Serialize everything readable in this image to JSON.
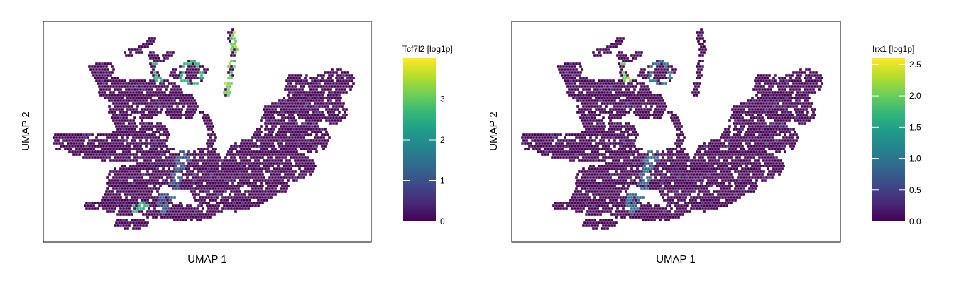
{
  "palette": [
    "#440154",
    "#482878",
    "#3e4989",
    "#31688e",
    "#26828e",
    "#1f9e89",
    "#35b779",
    "#6ece58",
    "#b5de2b",
    "#fde725"
  ],
  "chart_data": [
    {
      "type": "scatter",
      "subtype": "hexbin-embedding",
      "xlabel": "UMAP 1",
      "ylabel": "UMAP 2",
      "legend": {
        "title": "Tcf7l2 [log1p]",
        "position": "right",
        "ticks": [
          0,
          1,
          2,
          3
        ],
        "range": [
          0,
          4.0
        ]
      },
      "highlights": [
        {
          "region": "upper-right-arm",
          "value": 3.6
        },
        {
          "region": "upper-ring",
          "value": 2.8
        },
        {
          "region": "upper-left-tip",
          "value": 3.0
        },
        {
          "region": "center-lower",
          "value": 1.2
        },
        {
          "region": "small-lower-patch",
          "value": 2.8
        }
      ]
    },
    {
      "type": "scatter",
      "subtype": "hexbin-embedding",
      "xlabel": "UMAP 1",
      "ylabel": "UMAP 2",
      "legend": {
        "title": "Irx1 [log1p]",
        "position": "right",
        "ticks": [
          0.0,
          0.5,
          1.0,
          1.5,
          2.0,
          2.5
        ],
        "range": [
          0,
          2.6
        ]
      },
      "highlights": [
        {
          "region": "upper-left-tip",
          "value": 2.3
        },
        {
          "region": "upper-ring",
          "value": 1.1
        },
        {
          "region": "center-lower",
          "value": 0.9
        }
      ]
    }
  ]
}
